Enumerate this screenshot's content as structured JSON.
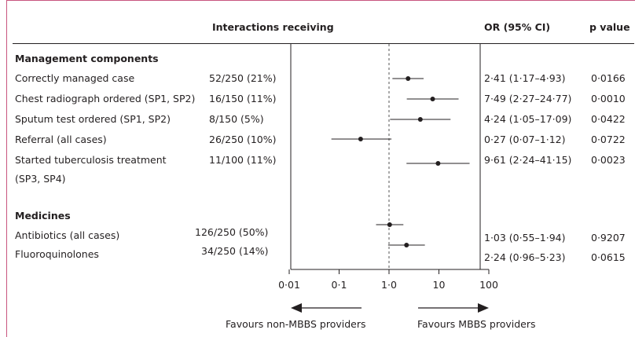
{
  "headers": {
    "interactions": "Interactions receiving",
    "or": "OR (95% CI)",
    "p": "p value"
  },
  "sections": [
    {
      "title": "Management components",
      "rows": [
        {
          "label": "Correctly managed case",
          "label2": "",
          "count": "52/250 (21%)",
          "or_text": "2·41 (1·17–4·93)",
          "p": "0·0166",
          "or": 2.41,
          "lo": 1.17,
          "hi": 4.93
        },
        {
          "label": "Chest radiograph ordered (SP1, SP2)",
          "label2": "",
          "count": "16/150 (11%)",
          "or_text": "7·49 (2·27–24·77)",
          "p": "0·0010",
          "or": 7.49,
          "lo": 2.27,
          "hi": 24.77
        },
        {
          "label": "Sputum test ordered (SP1, SP2)",
          "label2": "",
          "count": "8/150 (5%)",
          "or_text": "4·24 (1·05–17·09)",
          "p": "0·0422",
          "or": 4.24,
          "lo": 1.05,
          "hi": 17.09
        },
        {
          "label": "Referral (all cases)",
          "label2": "",
          "count": "26/250 (10%)",
          "or_text": "0·27 (0·07–1·12)",
          "p": "0·0722",
          "or": 0.27,
          "lo": 0.07,
          "hi": 1.12
        },
        {
          "label": "Started tuberculosis treatment",
          "label2": "(SP3, SP4)",
          "count": "11/100 (11%)",
          "or_text": "9·61 (2·24–41·15)",
          "p": "0·0023",
          "or": 9.61,
          "lo": 2.24,
          "hi": 41.15
        }
      ]
    },
    {
      "title": "Medicines",
      "rows": [
        {
          "label": "Antibiotics (all cases)",
          "label2": "",
          "count": "126/250 (50%)",
          "or_text": "1·03 (0·55–1·94)",
          "p": "0·9207",
          "or": 1.03,
          "lo": 0.55,
          "hi": 1.94
        },
        {
          "label": "Fluoroquinolones",
          "label2": "",
          "count": "34/250 (14%)",
          "or_text": "2·24 (0·96–5·23)",
          "p": "0·0615",
          "or": 2.24,
          "lo": 0.96,
          "hi": 5.23
        }
      ]
    }
  ],
  "axis": {
    "ticks": [
      0.01,
      0.1,
      1,
      10,
      100
    ],
    "tick_labels": [
      "0·01",
      "0·1",
      "1·0",
      "10",
      "100"
    ]
  },
  "favours": {
    "left": "Favours non-MBBS providers",
    "right": "Favours MBBS providers"
  },
  "colors": {
    "frame": "#c8557f",
    "ink": "#231f20"
  },
  "chart_data": {
    "type": "forest",
    "scale": "log",
    "xlim": [
      0.01,
      100
    ],
    "reference_line": 1,
    "categories": [
      "Correctly managed case",
      "Chest radiograph ordered (SP1, SP2)",
      "Sputum test ordered (SP1, SP2)",
      "Referral (all cases)",
      "Started tuberculosis treatment (SP3, SP4)",
      "Antibiotics (all cases)",
      "Fluoroquinolones"
    ],
    "or": [
      2.41,
      7.49,
      4.24,
      0.27,
      9.61,
      1.03,
      2.24
    ],
    "ci_low": [
      1.17,
      2.27,
      1.05,
      0.07,
      2.24,
      0.55,
      0.96
    ],
    "ci_high": [
      4.93,
      24.77,
      17.09,
      1.12,
      41.15,
      1.94,
      5.23
    ]
  }
}
